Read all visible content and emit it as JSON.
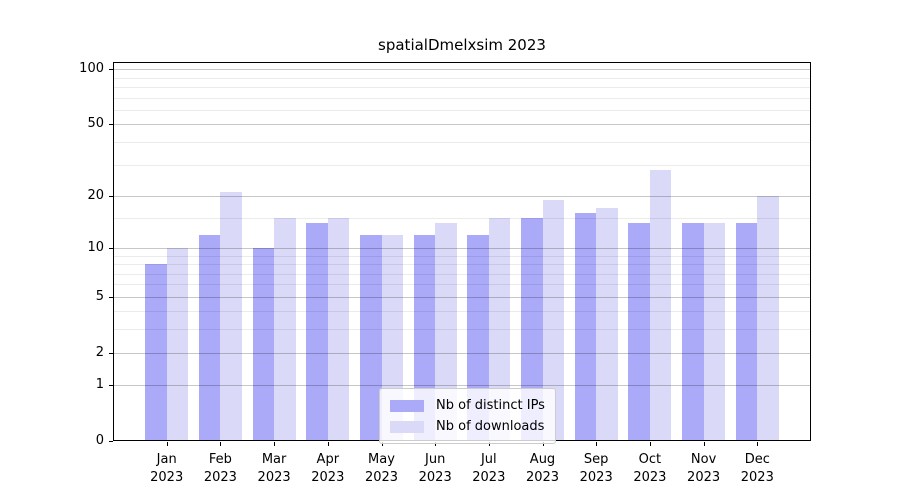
{
  "chart_data": {
    "type": "bar",
    "title": "spatialDmelxsim 2023",
    "year": "2023",
    "categories": [
      "Jan",
      "Feb",
      "Mar",
      "Apr",
      "May",
      "Jun",
      "Jul",
      "Aug",
      "Sep",
      "Oct",
      "Nov",
      "Dec"
    ],
    "series": [
      {
        "key": "ips",
        "name": "Nb of distinct IPs",
        "color": "#aaaaf8",
        "values": [
          8,
          12,
          10,
          14,
          12,
          12,
          12,
          15,
          16,
          14,
          14,
          14
        ]
      },
      {
        "key": "downloads",
        "name": "Nb of downloads",
        "color": "#dadaf8",
        "values": [
          10,
          21,
          15,
          15,
          12,
          14,
          15,
          19,
          17,
          28,
          14,
          20
        ]
      }
    ],
    "y_scale": "log10(value+1)",
    "y_major_ticks": [
      0,
      1,
      2,
      5,
      10,
      20,
      50,
      100
    ],
    "y_minor_ticks": [
      3,
      4,
      6,
      7,
      8,
      9,
      15,
      30,
      40,
      60,
      70,
      80,
      90
    ],
    "ylim": [
      0,
      110
    ],
    "grid": "horizontal, drawn over bars",
    "legend_position": "lower center"
  }
}
